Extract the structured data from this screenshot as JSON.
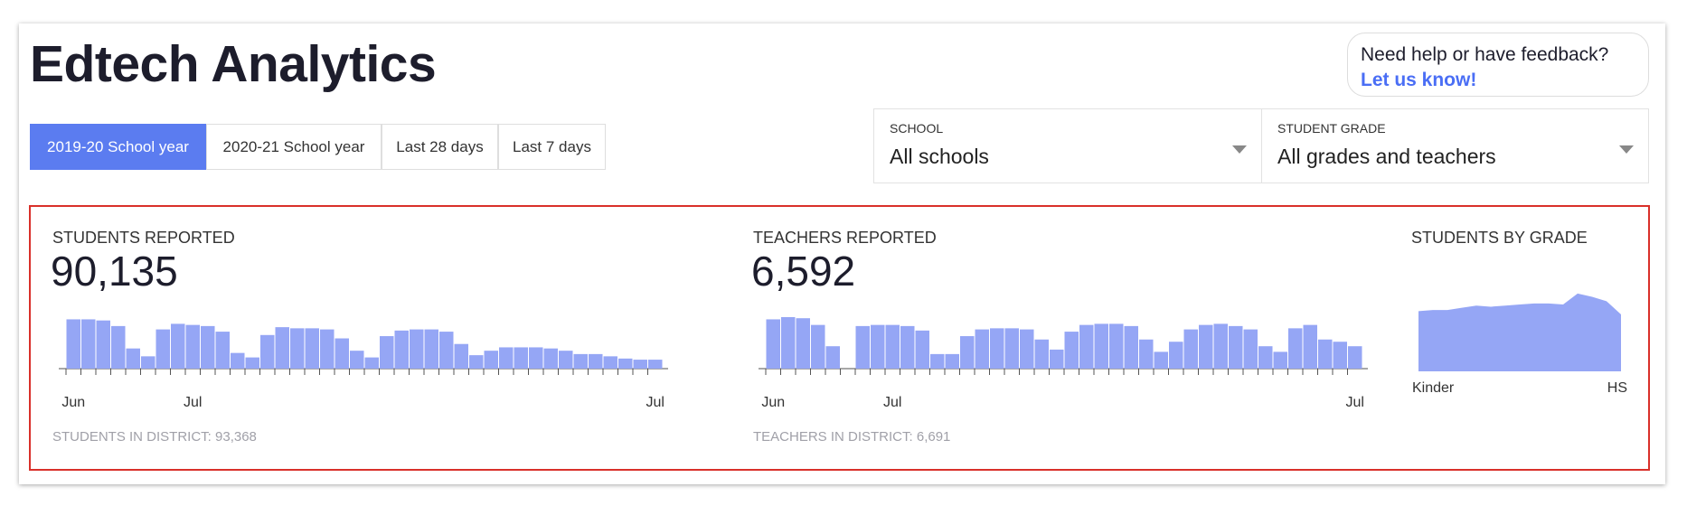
{
  "header": {
    "title": "Edtech Analytics",
    "help_text": "Need help or have feedback?",
    "help_link": "Let us know!"
  },
  "tabs": [
    "2019-20 School year",
    "2020-21 School year",
    "Last 28 days",
    "Last 7 days"
  ],
  "active_tab": 0,
  "filters": [
    {
      "label": "SCHOOL",
      "value": "All schools"
    },
    {
      "label": "STUDENT GRADE",
      "value": "All grades and teachers"
    }
  ],
  "chart_data": [
    {
      "type": "bar",
      "title": "STUDENTS REPORTED",
      "total": "90,135",
      "footnote": "STUDENTS IN DISTRICT: 93,368",
      "color": "#95a6f5",
      "categories": [
        "Jun",
        null,
        null,
        null,
        null,
        null,
        null,
        null,
        "Jul",
        null,
        null,
        null,
        null,
        null,
        null,
        null,
        null,
        null,
        null,
        null,
        null,
        null,
        null,
        null,
        null,
        null,
        null,
        null,
        null,
        null,
        null,
        null,
        null,
        null,
        null,
        null,
        null,
        null,
        null,
        "Jul"
      ],
      "values": [
        44,
        44,
        43,
        38,
        18,
        11,
        35,
        40,
        39,
        38,
        33,
        14,
        10,
        30,
        37,
        36,
        36,
        35,
        27,
        16,
        10,
        29,
        34,
        35,
        35,
        33,
        22,
        12,
        16,
        19,
        19,
        19,
        18,
        16,
        13,
        13,
        11,
        9,
        8,
        8
      ],
      "ylim": [
        0,
        50
      ]
    },
    {
      "type": "bar",
      "title": "TEACHERS REPORTED",
      "total": "6,592",
      "footnote": "TEACHERS IN DISTRICT: 6,691",
      "color": "#95a6f5",
      "categories": [
        "Jun",
        null,
        null,
        null,
        null,
        null,
        null,
        null,
        "Jul",
        null,
        null,
        null,
        null,
        null,
        null,
        null,
        null,
        null,
        null,
        null,
        null,
        null,
        null,
        null,
        null,
        null,
        null,
        null,
        null,
        null,
        null,
        null,
        null,
        null,
        null,
        null,
        null,
        null,
        null,
        "Jul"
      ],
      "values": [
        44,
        46,
        45,
        39,
        20,
        0,
        38,
        39,
        39,
        38,
        34,
        13,
        13,
        29,
        35,
        36,
        36,
        35,
        26,
        17,
        33,
        39,
        40,
        40,
        38,
        26,
        15,
        24,
        35,
        39,
        40,
        38,
        35,
        20,
        15,
        36,
        39,
        26,
        24,
        20
      ],
      "ylim": [
        0,
        50
      ]
    },
    {
      "type": "area",
      "title": "STUDENTS BY GRADE",
      "color": "#95a6f5",
      "categories": [
        "Kinder",
        null,
        null,
        null,
        null,
        null,
        null,
        null,
        null,
        null,
        null,
        null,
        null,
        null,
        "HS"
      ],
      "values": [
        55,
        56,
        56,
        58,
        60,
        59,
        60,
        61,
        62,
        62,
        61,
        71,
        68,
        64,
        52
      ],
      "ylim": [
        0,
        80
      ]
    }
  ]
}
